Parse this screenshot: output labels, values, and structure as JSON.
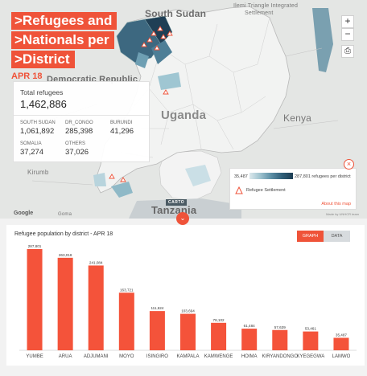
{
  "map": {
    "title_lines": [
      ">Refugees and",
      ">Nationals per",
      ">District"
    ],
    "date": "APR 18",
    "place_labels": {
      "south_sudan": "South Sudan",
      "kenya": "Kenya",
      "uganda": "Uganda",
      "drc": "Democratic Republic",
      "tanzania": "Tanzania",
      "kirumba": "Kirumb",
      "ilemi_1": "Ilemi Triangle Integrated",
      "ilemi_2": "Settlement",
      "goma": "Goma"
    },
    "stats": {
      "total_label": "Total refugees",
      "total_value": "1,462,886",
      "countries": [
        {
          "name": "SOUTH SUDAN",
          "value": "1,061,892"
        },
        {
          "name": "DR_CONGO",
          "value": "285,398"
        },
        {
          "name": "BURUNDI",
          "value": "41,296"
        },
        {
          "name": "SOMALIA",
          "value": "37,274"
        },
        {
          "name": "OTHERS",
          "value": "37,026"
        }
      ]
    },
    "controls": {
      "zoom_in": "+",
      "zoom_out": "−",
      "print": "⎙"
    },
    "legend": {
      "min": "35,487",
      "max": "287,801 refugees per district",
      "settlement": "Refugee Settlement",
      "about": "About this map",
      "close": "×"
    },
    "carto": "CARTO",
    "attribution": "Made by UNHCR team",
    "google": "Google",
    "expand": "⌄"
  },
  "chart": {
    "title": "Refugee population by district - APR 18",
    "toggle": {
      "graph": "GRAPH",
      "data": "DATA"
    }
  },
  "colors": {
    "accent": "#ef5339",
    "bar": "#f4533a",
    "toggle_off": "#d7dbde"
  },
  "chart_data": {
    "type": "bar",
    "title": "Refugee population by district - APR 18",
    "categories": [
      "YUMBE",
      "ARUA",
      "ADJUMANI",
      "MOYO",
      "ISINGIRO",
      "KAMPALA",
      "KAMWENGE",
      "HOIMA",
      "KIRYANDONGO",
      "KYEGEGWA",
      "LAMWO"
    ],
    "values": [
      287801,
      263018,
      241084,
      163721,
      111624,
      103694,
      78102,
      61484,
      57639,
      53461,
      35487
    ],
    "value_labels": [
      "287,801",
      "263,018",
      "241,084",
      "163,721",
      "111,624",
      "103,694",
      "78,102",
      "61,484",
      "57,639",
      "53,461",
      "35,487"
    ],
    "ylim": [
      0,
      287801
    ],
    "grid": false,
    "legend": "none"
  }
}
